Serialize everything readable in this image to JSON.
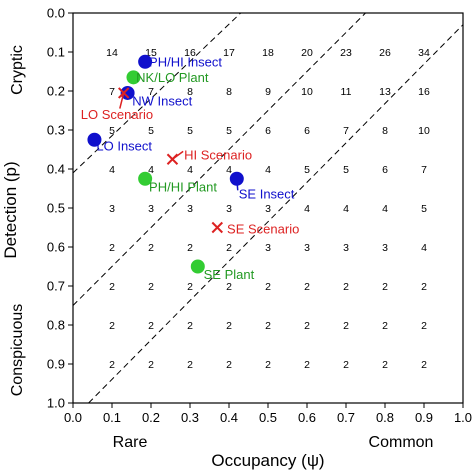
{
  "chart_data": {
    "type": "scatter",
    "xlabel": "Occupancy (ψ)",
    "ylabel": "Detection (p)",
    "x_side_labels": [
      "Rare",
      "Common"
    ],
    "y_side_labels": [
      "Cryptic",
      "Conspicuous"
    ],
    "xlim": [
      0.0,
      1.0
    ],
    "ylim": [
      0.0,
      1.0
    ],
    "y_axis_inverted": true,
    "x_ticks": [
      "0.0",
      "0.1",
      "0.2",
      "0.3",
      "0.4",
      "0.5",
      "0.6",
      "0.7",
      "0.8",
      "0.9",
      "1.0"
    ],
    "y_ticks": [
      "0.0",
      "0.1",
      "0.2",
      "0.3",
      "0.4",
      "0.5",
      "0.6",
      "0.7",
      "0.8",
      "0.9",
      "1.0"
    ],
    "grid_x": [
      0.1,
      0.2,
      0.3,
      0.4,
      0.5,
      0.6,
      0.7,
      0.8,
      0.9
    ],
    "grid_y": [
      0.1,
      0.2,
      0.3,
      0.4,
      0.5,
      0.6,
      0.7,
      0.8,
      0.9
    ],
    "grid_values": [
      [
        "14",
        "15",
        "16",
        "17",
        "18",
        "20",
        "23",
        "26",
        "34"
      ],
      [
        "7",
        "7",
        "8",
        "8",
        "9",
        "10",
        "11",
        "13",
        "16"
      ],
      [
        "5",
        "5",
        "5",
        "5",
        "6",
        "6",
        "7",
        "8",
        "10"
      ],
      [
        "4",
        "4",
        "4",
        "4",
        "4",
        "5",
        "5",
        "6",
        "7"
      ],
      [
        "3",
        "3",
        "3",
        "3",
        "3",
        "4",
        "4",
        "4",
        "5"
      ],
      [
        "2",
        "2",
        "2",
        "2",
        "3",
        "3",
        "3",
        "3",
        "4"
      ],
      [
        "2",
        "2",
        "2",
        "2",
        "2",
        "2",
        "2",
        "2",
        "2"
      ],
      [
        "2",
        "2",
        "2",
        "2",
        "2",
        "2",
        "2",
        "2",
        "2"
      ],
      [
        "2",
        "2",
        "2",
        "2",
        "2",
        "2",
        "2",
        "2",
        "2"
      ]
    ],
    "dashed_lines": [
      [
        [
          0.0,
          0.41
        ],
        [
          0.43,
          0.0
        ]
      ],
      [
        [
          0.0,
          0.75
        ],
        [
          0.75,
          0.0
        ]
      ],
      [
        [
          0.04,
          1.0
        ],
        [
          1.0,
          0.03
        ]
      ]
    ],
    "points": [
      {
        "label": "PH/HI Insect",
        "x": 0.185,
        "y": 0.125,
        "marker": "circle",
        "color": "#1010cc",
        "label_color": "#1010cc",
        "label_x": 0.195,
        "label_y": 0.127,
        "anchor": "start"
      },
      {
        "label": "NK/LO Plant",
        "x": 0.155,
        "y": 0.165,
        "marker": "circle",
        "color": "#33cc33",
        "label_color": "#229922",
        "label_x": 0.162,
        "label_y": 0.167,
        "anchor": "start"
      },
      {
        "label": "NW Insect",
        "x": 0.14,
        "y": 0.205,
        "marker": "circle",
        "color": "#1010cc",
        "label_color": "#1010cc",
        "label_x": 0.152,
        "label_y": 0.227,
        "anchor": "start"
      },
      {
        "label": "",
        "x": 0.13,
        "y": 0.205,
        "marker": "x",
        "color": "#dd2222"
      },
      {
        "label": "LO Scenario",
        "x": 0.13,
        "y": 0.205,
        "marker": "none",
        "color": "#dd2222",
        "label_color": "#dd2222",
        "label_x": 0.02,
        "label_y": 0.262,
        "anchor": "start",
        "leader": [
          0.12,
          0.245
        ]
      },
      {
        "label": "LO Insect",
        "x": 0.055,
        "y": 0.325,
        "marker": "circle",
        "color": "#1010cc",
        "label_color": "#1010cc",
        "label_x": 0.06,
        "label_y": 0.342,
        "anchor": "start"
      },
      {
        "label": "HI Scenario",
        "x": 0.255,
        "y": 0.375,
        "marker": "x",
        "color": "#dd2222",
        "label_color": "#dd2222",
        "label_x": 0.285,
        "label_y": 0.365,
        "anchor": "start"
      },
      {
        "label": "PH/HI Plant",
        "x": 0.185,
        "y": 0.425,
        "marker": "circle",
        "color": "#33cc33",
        "label_color": "#229922",
        "label_x": 0.195,
        "label_y": 0.447,
        "anchor": "start"
      },
      {
        "label": "SE Insect",
        "x": 0.42,
        "y": 0.425,
        "marker": "circle",
        "color": "#1010cc",
        "label_color": "#1010cc",
        "label_x": 0.425,
        "label_y": 0.465,
        "anchor": "start"
      },
      {
        "label": "SE Scenario",
        "x": 0.37,
        "y": 0.55,
        "marker": "x",
        "color": "#dd2222",
        "label_color": "#dd2222",
        "label_x": 0.395,
        "label_y": 0.555,
        "anchor": "start"
      },
      {
        "label": "SE Plant",
        "x": 0.32,
        "y": 0.65,
        "marker": "circle",
        "color": "#33cc33",
        "label_color": "#229922",
        "label_x": 0.335,
        "label_y": 0.672,
        "anchor": "start"
      }
    ]
  }
}
